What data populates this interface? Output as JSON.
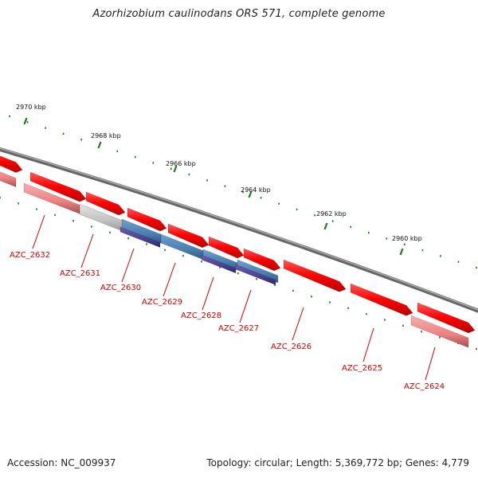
{
  "title": "Azorhizobium caulinodans ORS 571, complete genome",
  "footer": {
    "accession": "Accession: NC_009937",
    "summary": "Topology: circular; Length: 5,369,772 bp; Genes: 4,779"
  },
  "scale_labels": [
    "2970 kbp",
    "2968 kbp",
    "2966 kbp",
    "2964 kbp",
    "2962 kbp",
    "2960 kbp"
  ],
  "genes": [
    "AZC_2632",
    "AZC_2631",
    "AZC_2630",
    "AZC_2629",
    "AZC_2628",
    "AZC_2627",
    "AZC_2626",
    "AZC_2625",
    "AZC_2624"
  ],
  "colors": {
    "cds": "#ff0000",
    "cds_light": "#f08080",
    "gray": "#c0c0c0",
    "blue": "#4a7fb0",
    "purple": "#4b3f8f",
    "backbone": "#777777",
    "tick": "#1a7a1a",
    "label": "#d00000"
  }
}
